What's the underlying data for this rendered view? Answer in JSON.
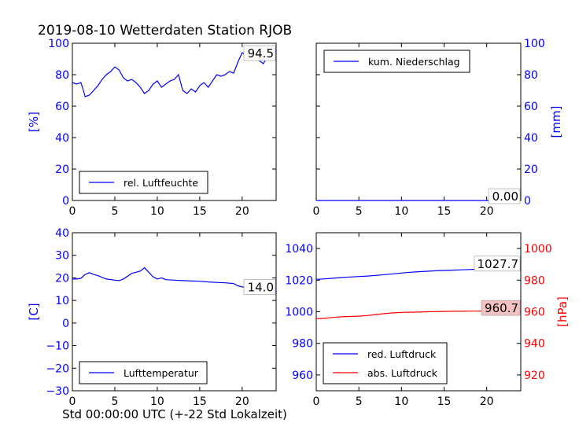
{
  "title": "2019-08-10 Wetterdaten Station RJOB",
  "xlabel": "Std 00:00:00 UTC (+-22 Std Lokalzeit)",
  "colors": {
    "blue": "#0000ff",
    "red": "#ff0000",
    "annot_red_bg": "#f4c2c2"
  },
  "chart_data": [
    {
      "type": "line",
      "xlim": [
        0,
        24
      ],
      "ylim": [
        0,
        100
      ],
      "xticks": [
        "0",
        "5",
        "10",
        "15",
        "20"
      ],
      "yticks": [
        "0",
        "20",
        "40",
        "60",
        "80",
        "100"
      ],
      "ylabel": "[%]",
      "y_axis_side": "left",
      "y_axis_color": "#0000ff",
      "legend": "lower left",
      "grid": false,
      "series": [
        {
          "name": "rel. Luftfeuchte",
          "color": "#0000ff",
          "x": [
            0,
            0.5,
            1.0,
            1.3,
            1.5,
            2.0,
            2.5,
            3.0,
            3.5,
            4.0,
            4.5,
            5.0,
            5.5,
            6.0,
            6.5,
            7.0,
            7.5,
            8.0,
            8.5,
            9.0,
            9.5,
            10.0,
            10.5,
            11.0,
            11.5,
            12.0,
            12.5,
            13.0,
            13.5,
            14.0,
            14.5,
            15.0,
            15.5,
            16.0,
            16.5,
            17.0,
            17.5,
            18.0,
            18.5,
            19.0,
            19.5,
            20.0,
            20.5,
            21.0,
            21.5,
            22.0,
            22.5,
            23.0,
            23.5,
            24.0
          ],
          "y": [
            75,
            74,
            75,
            70,
            66,
            67,
            70,
            73,
            77,
            80,
            82,
            85,
            83,
            78,
            76,
            77,
            75,
            72,
            68,
            70,
            74,
            76,
            72,
            74,
            76,
            77,
            80,
            70,
            68,
            71,
            69,
            73,
            75,
            72,
            76,
            80,
            79,
            80,
            82,
            81,
            88,
            94,
            92,
            95,
            94,
            89,
            87,
            92,
            94,
            95
          ]
        }
      ],
      "annotation": {
        "text": "94.5",
        "x": 24,
        "y": 94.5,
        "style": "white"
      }
    },
    {
      "type": "line",
      "xlim": [
        0,
        24
      ],
      "ylim": [
        0,
        100
      ],
      "xticks": [
        "0",
        "5",
        "10",
        "15",
        "20"
      ],
      "yticks": [
        "0",
        "20",
        "40",
        "60",
        "80",
        "100"
      ],
      "ylabel": "[mm]",
      "y_axis_side": "right",
      "y_axis_color": "#0000ff",
      "legend": "upper left",
      "grid": false,
      "series": [
        {
          "name": "kum. Niederschlag",
          "color": "#0000ff",
          "x": [
            0,
            24
          ],
          "y": [
            0,
            0
          ]
        }
      ],
      "annotation": {
        "text": "0.00",
        "x": 24,
        "y": 0,
        "style": "white"
      }
    },
    {
      "type": "line",
      "xlim": [
        0,
        24
      ],
      "ylim": [
        -30,
        40
      ],
      "xticks": [
        "0",
        "5",
        "10",
        "15",
        "20"
      ],
      "yticks": [
        "−30",
        "−20",
        "−10",
        "0",
        "10",
        "20",
        "30",
        "40"
      ],
      "ylabel": "[C]",
      "y_axis_side": "left",
      "y_axis_color": "#0000ff",
      "legend": "lower left",
      "grid": false,
      "series": [
        {
          "name": "Lufttemperatur",
          "color": "#0000ff",
          "x": [
            0,
            0.5,
            1.0,
            1.5,
            2.0,
            2.5,
            3.0,
            4.0,
            5.0,
            5.5,
            6.0,
            7.0,
            8.0,
            8.5,
            9.0,
            9.5,
            10.0,
            10.5,
            11.0,
            12.0,
            13.0,
            14.0,
            15.0,
            16.0,
            17.0,
            18.0,
            19.0,
            19.5,
            20.0,
            21.0,
            22.0,
            23.0,
            24.0
          ],
          "y": [
            19.5,
            19.5,
            19.8,
            21.5,
            22.3,
            21.5,
            21.0,
            19.5,
            19.0,
            18.8,
            19.5,
            22.0,
            23.0,
            24.5,
            22.5,
            20.5,
            19.5,
            20.0,
            19.2,
            19.0,
            18.8,
            18.6,
            18.5,
            18.2,
            18.0,
            17.8,
            17.5,
            16.5,
            16.0,
            15.5,
            15.0,
            14.5,
            14.0
          ]
        }
      ],
      "annotation": {
        "text": "14.0",
        "x": 24,
        "y": 14.0,
        "style": "white"
      }
    },
    {
      "type": "line",
      "xlim": [
        0,
        24
      ],
      "ylim": [
        950,
        1050
      ],
      "xticks": [
        "0",
        "5",
        "10",
        "15",
        "20"
      ],
      "yticks": [
        "960",
        "980",
        "1000",
        "1020",
        "1040"
      ],
      "ylabel": "",
      "y_axis_side": "left",
      "y_axis_color": "#0000ff",
      "right_axis": {
        "ylim": [
          910,
          1010
        ],
        "yticks": [
          "920",
          "940",
          "960",
          "980",
          "1000"
        ],
        "ylabel": "[hPa]",
        "color": "#ff0000"
      },
      "legend": "lower left",
      "grid": false,
      "series": [
        {
          "name": "red. Luftdruck",
          "color": "#0000ff",
          "axis": "left",
          "x": [
            0,
            1,
            2,
            3,
            4,
            5,
            6,
            7,
            8,
            9,
            10,
            11,
            12,
            13,
            14,
            15,
            16,
            17,
            18,
            19,
            20,
            21,
            22,
            23,
            24
          ],
          "y": [
            1020.5,
            1020.8,
            1021.2,
            1021.7,
            1022.0,
            1022.3,
            1022.6,
            1023.0,
            1023.5,
            1024.0,
            1024.5,
            1025.0,
            1025.3,
            1025.6,
            1025.9,
            1026.1,
            1026.3,
            1026.5,
            1026.7,
            1026.9,
            1027.1,
            1027.3,
            1027.4,
            1027.6,
            1027.7
          ]
        },
        {
          "name": "abs. Luftdruck",
          "color": "#ff0000",
          "axis": "right",
          "x": [
            0,
            1,
            2,
            3,
            4,
            5,
            6,
            7,
            8,
            9,
            10,
            11,
            12,
            13,
            14,
            15,
            16,
            17,
            18,
            19,
            20,
            21,
            22,
            23,
            24
          ],
          "y": [
            955.5,
            955.8,
            956.4,
            956.8,
            957.0,
            957.2,
            957.6,
            958.2,
            958.8,
            959.3,
            959.6,
            959.7,
            959.8,
            960.0,
            960.1,
            960.2,
            960.3,
            960.3,
            960.4,
            960.4,
            960.5,
            960.5,
            960.6,
            960.6,
            960.7
          ]
        }
      ],
      "annotations": [
        {
          "text": "1027.7",
          "x": 24,
          "y": 1027.7,
          "axis": "left",
          "style": "white"
        },
        {
          "text": "960.7",
          "x": 24,
          "y": 960.7,
          "axis": "right",
          "style": "red"
        }
      ]
    }
  ]
}
